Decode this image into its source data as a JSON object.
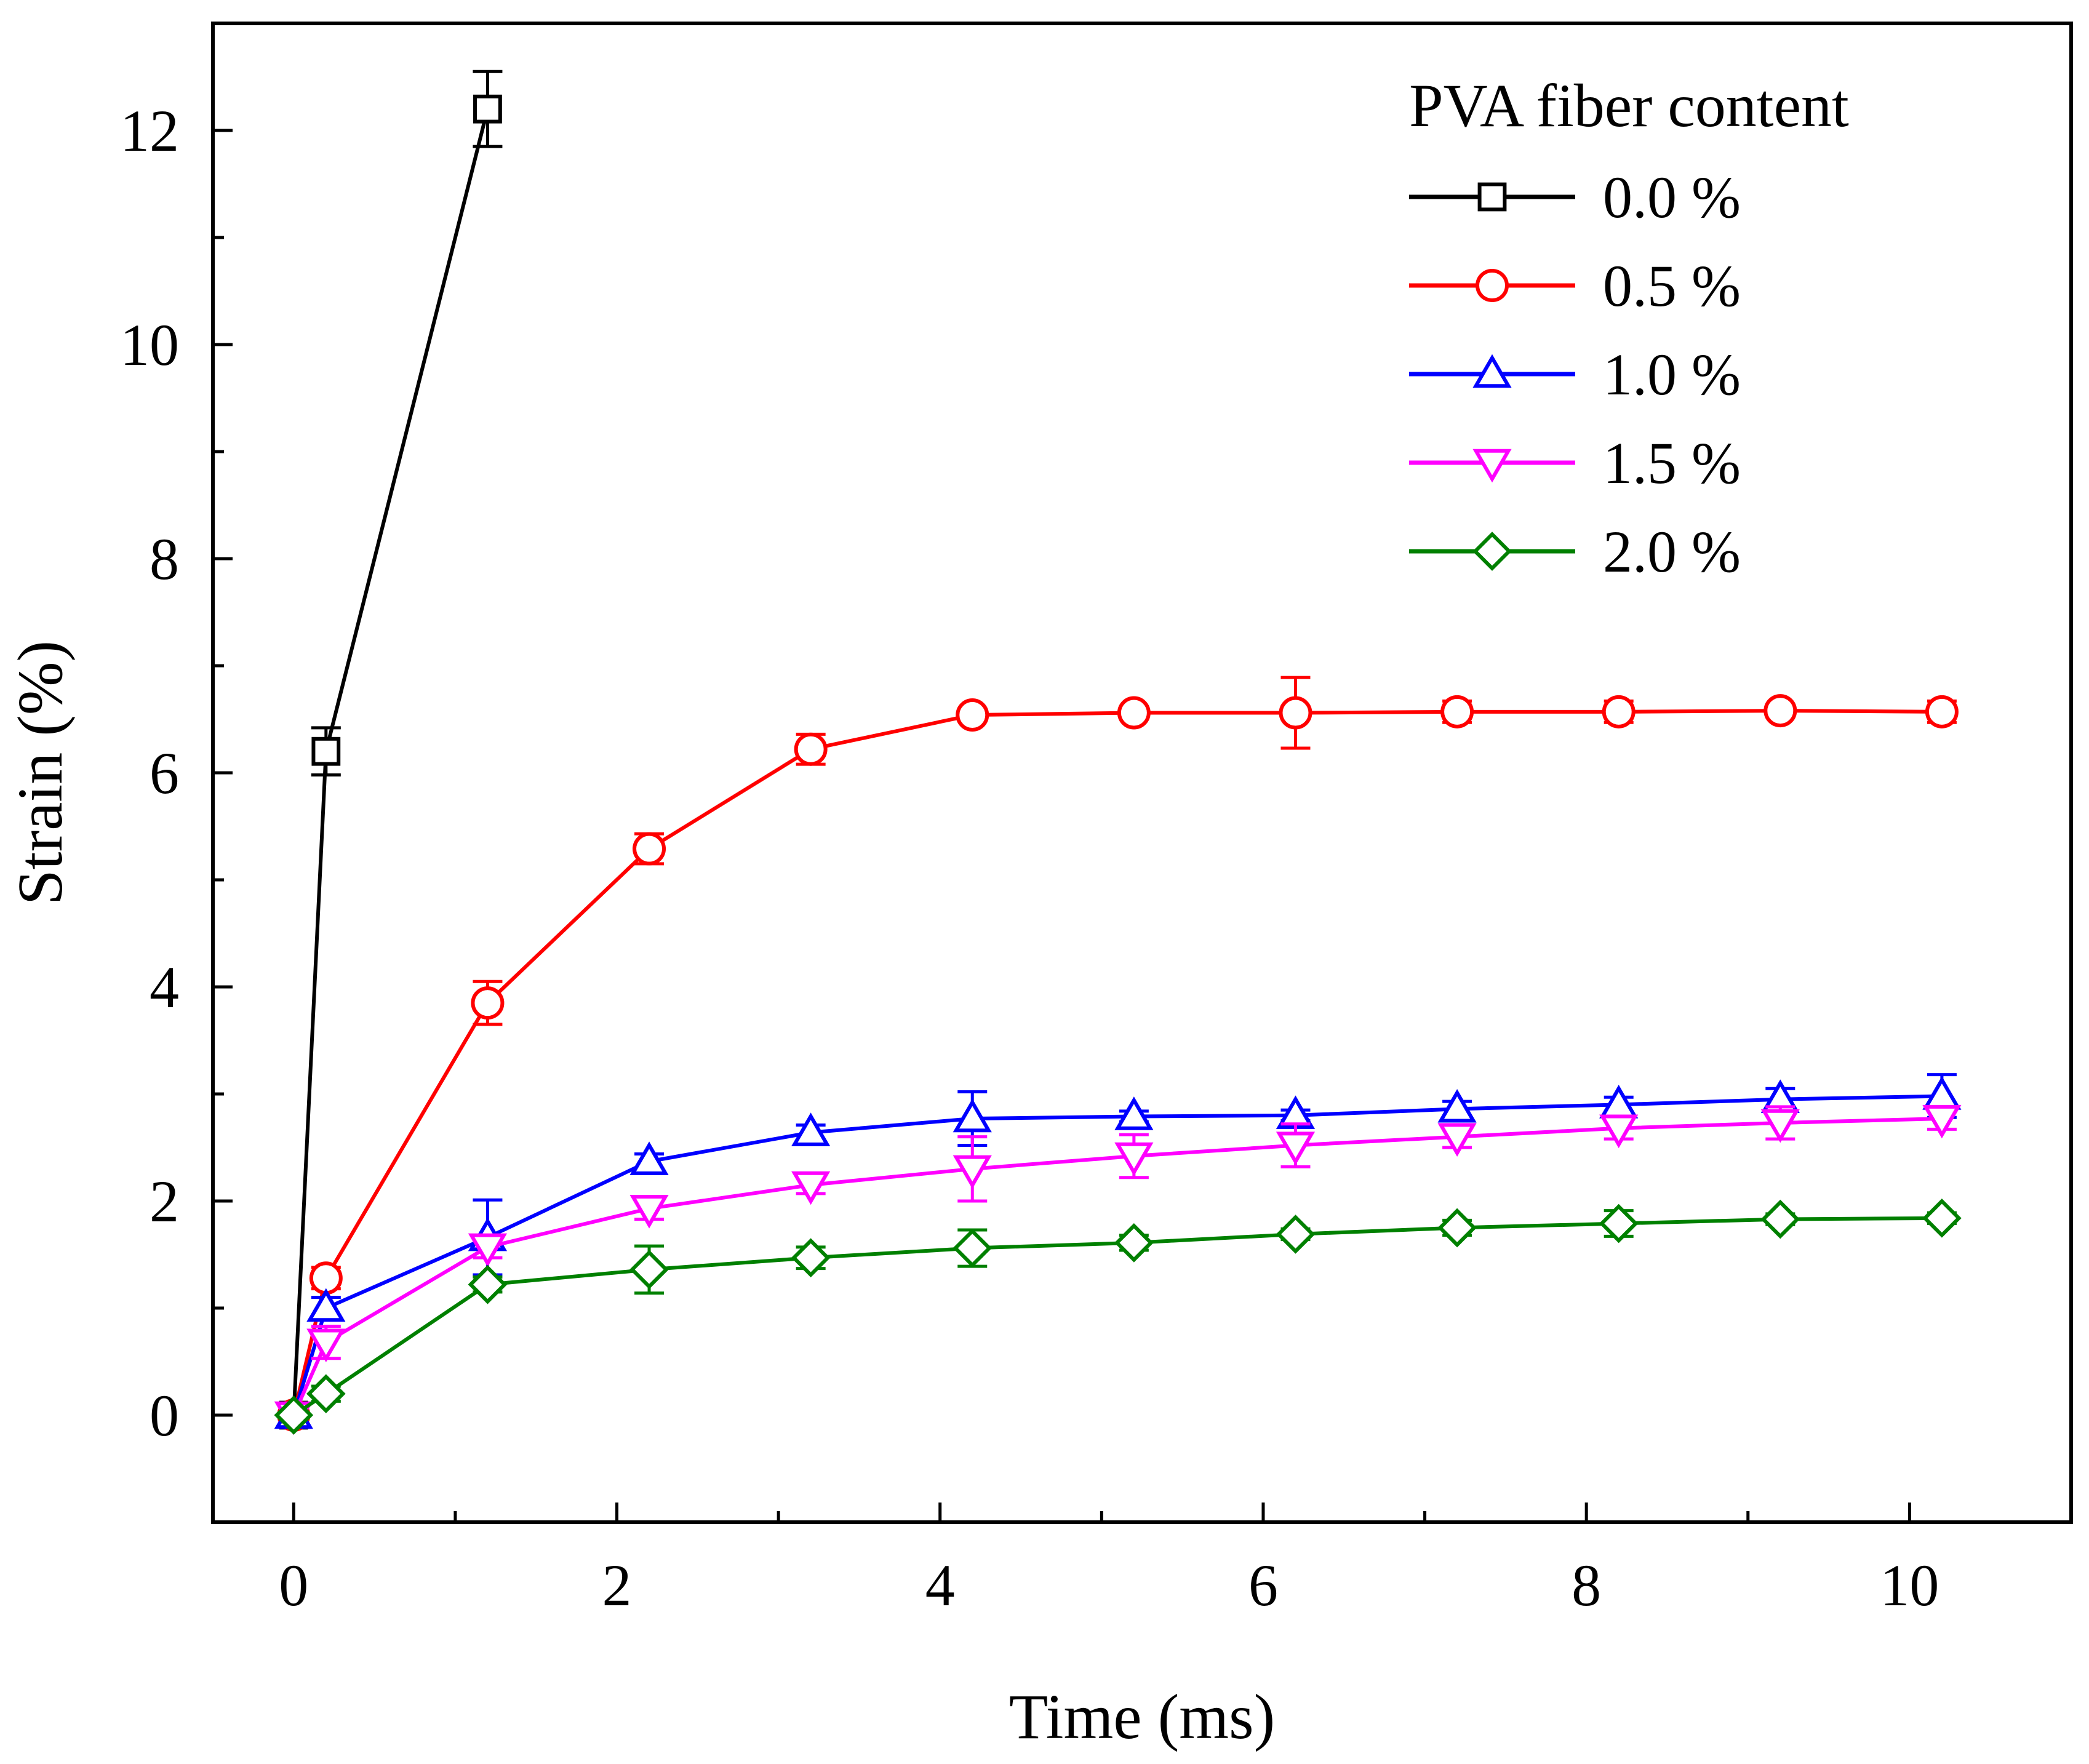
{
  "chart_data": {
    "type": "line",
    "title": "",
    "xlabel": "Time (ms)",
    "ylabel": "Strain (%)",
    "xlim": [
      -0.5,
      11.0
    ],
    "ylim": [
      -1.0,
      13.0
    ],
    "xticks": [
      0,
      2,
      4,
      6,
      8,
      10
    ],
    "yticks": [
      0,
      2,
      4,
      6,
      8,
      10,
      12
    ],
    "xtick_labels": [
      "0",
      "2",
      "4",
      "6",
      "8",
      "10"
    ],
    "ytick_labels": [
      "0",
      "2",
      "4",
      "6",
      "8",
      "10",
      "12"
    ],
    "x_minor_ticks": [
      1,
      3,
      5,
      7,
      9
    ],
    "y_minor_ticks": [
      1,
      3,
      5,
      7,
      9,
      11
    ],
    "grid": false,
    "legend": {
      "title": "PVA fiber content",
      "placement": "top-right",
      "labels": [
        "0.0 %",
        "0.5 %",
        "1.0 %",
        "1.5 %",
        "2.0 %"
      ]
    },
    "series": [
      {
        "name": "0.0 %",
        "color": "#000000",
        "marker": "square",
        "x": [
          0,
          0.2,
          1.2
        ],
        "y": [
          0,
          6.2,
          12.2
        ],
        "err": [
          0,
          0.22,
          0.35
        ]
      },
      {
        "name": "0.5 %",
        "color": "#ff0000",
        "marker": "circle",
        "x": [
          0,
          0.2,
          1.2,
          2.2,
          3.2,
          4.2,
          5.2,
          6.2,
          7.2,
          8.2,
          9.2,
          10.2
        ],
        "y": [
          0,
          1.28,
          3.85,
          5.29,
          6.22,
          6.54,
          6.56,
          6.56,
          6.57,
          6.57,
          6.58,
          6.57
        ],
        "err": [
          0,
          0.1,
          0.2,
          0.14,
          0.14,
          0.05,
          0.05,
          0.33,
          0.1,
          0.1,
          0.05,
          0.1
        ]
      },
      {
        "name": "1.0 %",
        "color": "#0000ff",
        "marker": "triangle-up",
        "x": [
          0,
          0.2,
          1.2,
          2.2,
          3.2,
          4.2,
          5.2,
          6.2,
          7.2,
          8.2,
          9.2,
          10.2
        ],
        "y": [
          0,
          1.0,
          1.66,
          2.37,
          2.64,
          2.77,
          2.79,
          2.8,
          2.86,
          2.9,
          2.95,
          2.98
        ],
        "err": [
          0,
          0.1,
          0.35,
          0.07,
          0.07,
          0.25,
          0.05,
          0.05,
          0.07,
          0.07,
          0.1,
          0.2
        ]
      },
      {
        "name": "1.5 %",
        "color": "#ff00ff",
        "marker": "triangle-down",
        "x": [
          0,
          0.2,
          1.2,
          2.2,
          3.2,
          4.2,
          5.2,
          6.2,
          7.2,
          8.2,
          9.2,
          10.2
        ],
        "y": [
          0,
          0.68,
          1.57,
          1.93,
          2.15,
          2.3,
          2.42,
          2.52,
          2.6,
          2.68,
          2.73,
          2.77
        ],
        "err": [
          0,
          0.15,
          0.1,
          0.1,
          0.08,
          0.3,
          0.2,
          0.2,
          0.1,
          0.1,
          0.15,
          0.1
        ]
      },
      {
        "name": "2.0 %",
        "color": "#008000",
        "marker": "diamond",
        "x": [
          0,
          0.2,
          1.2,
          2.2,
          3.2,
          4.2,
          5.2,
          6.2,
          7.2,
          8.2,
          9.2,
          10.2
        ],
        "y": [
          0,
          0.2,
          1.22,
          1.36,
          1.47,
          1.56,
          1.61,
          1.69,
          1.75,
          1.79,
          1.83,
          1.84
        ],
        "err": [
          0,
          0.07,
          0.07,
          0.22,
          0.1,
          0.17,
          0.07,
          0.05,
          0.07,
          0.12,
          0.05,
          0.05
        ]
      }
    ]
  }
}
